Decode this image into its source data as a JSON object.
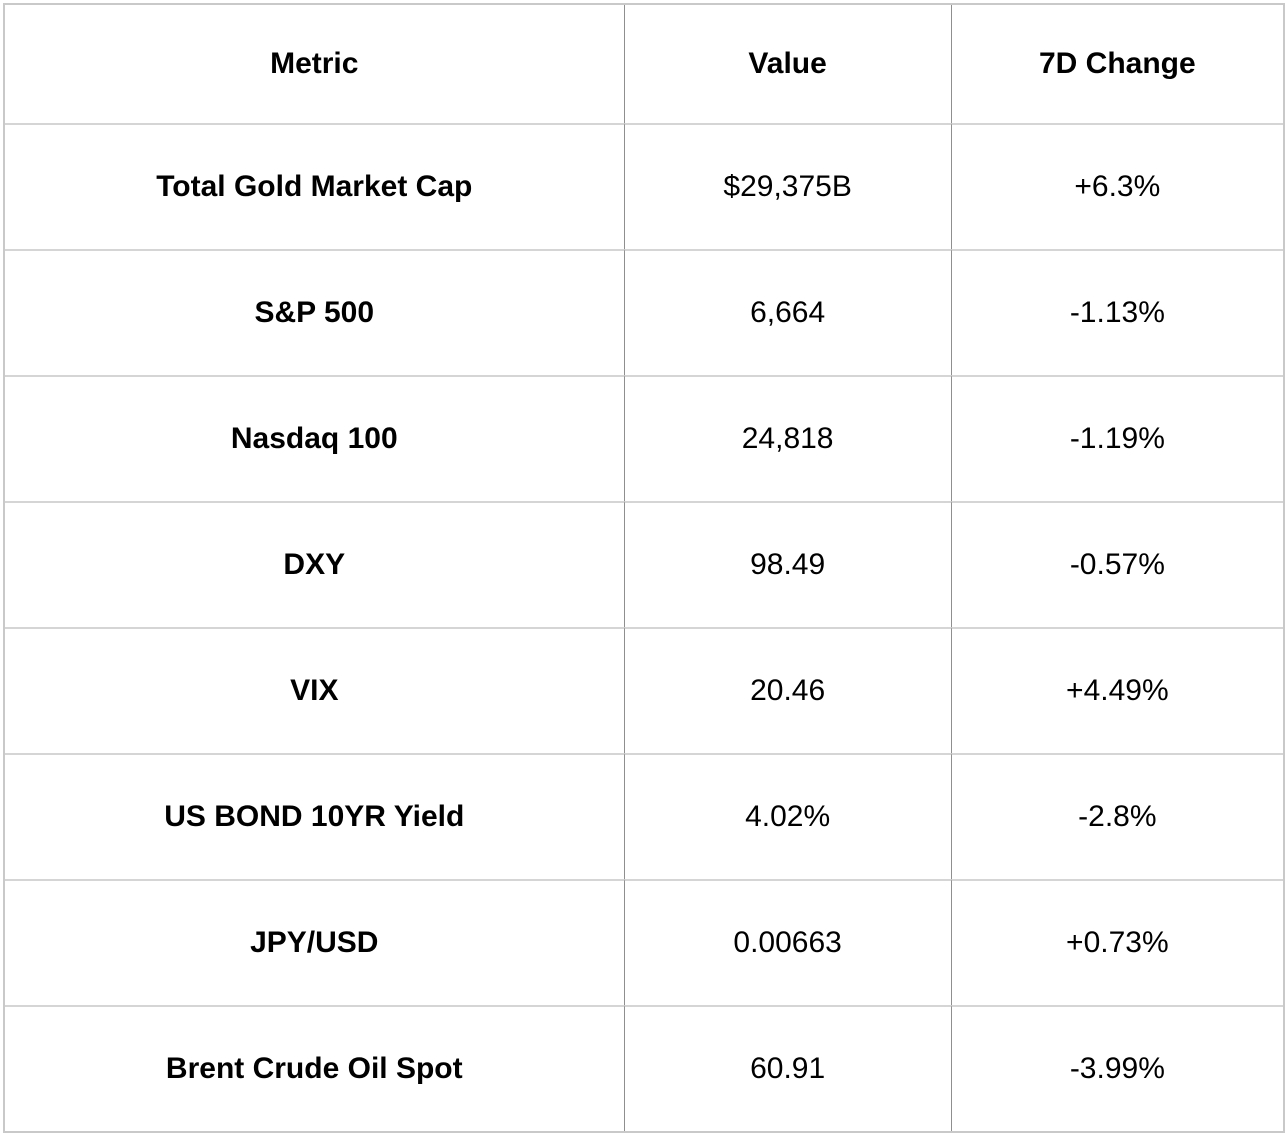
{
  "chart_data": {
    "type": "table",
    "columns": [
      "Metric",
      "Value",
      "7D Change"
    ],
    "rows": [
      {
        "metric": "Total Gold Market Cap",
        "value": "$29,375B",
        "change": "+6.3%"
      },
      {
        "metric": "S&P 500",
        "value": "6,664",
        "change": "-1.13%"
      },
      {
        "metric": "Nasdaq 100",
        "value": "24,818",
        "change": "-1.19%"
      },
      {
        "metric": "DXY",
        "value": "98.49",
        "change": "-0.57%"
      },
      {
        "metric": "VIX",
        "value": "20.46",
        "change": "+4.49%"
      },
      {
        "metric": "US BOND 10YR Yield",
        "value": "4.02%",
        "change": "-2.8%"
      },
      {
        "metric": "JPY/USD",
        "value": "0.00663",
        "change": "+0.73%"
      },
      {
        "metric": "Brent Crude Oil Spot",
        "value": "60.91",
        "change": "-3.99%"
      }
    ]
  },
  "colors": {
    "background": "#ffffff",
    "text": "#000000",
    "outer_border": "#c9c9c9",
    "row_divider": "#d5d5d5",
    "column_divider": "#8f8f8f"
  }
}
